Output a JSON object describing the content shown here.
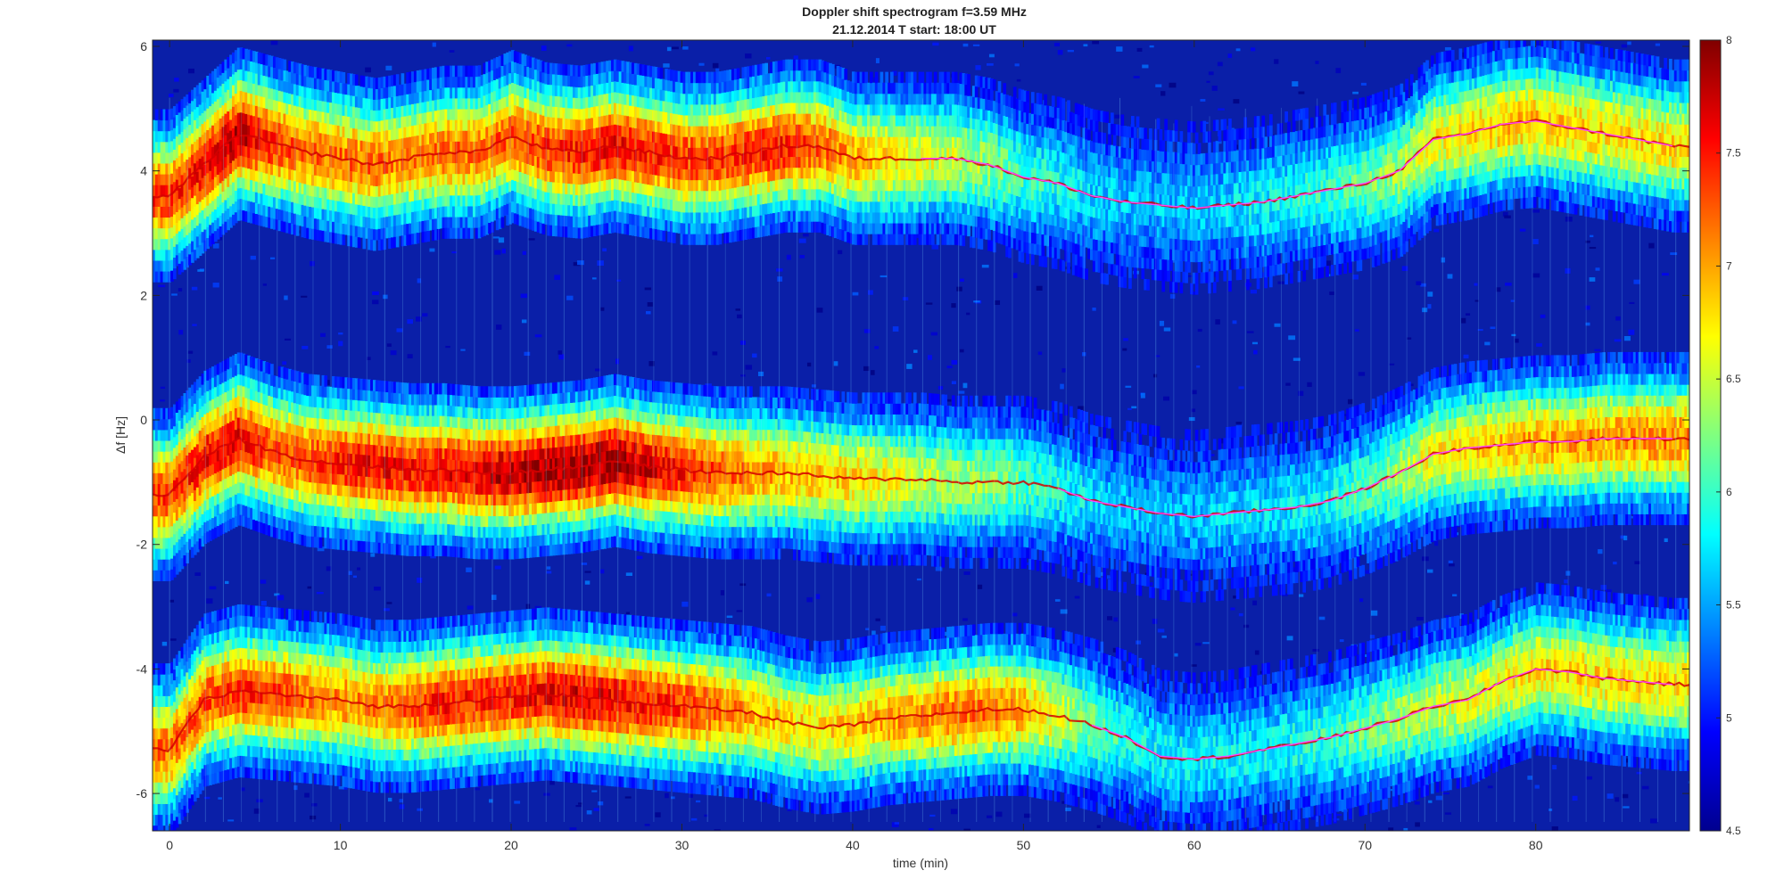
{
  "chart_data": {
    "type": "heatmap",
    "title": "Doppler shift spectrogram f=3.59 MHz",
    "subtitle": "21.12.2014   T start: 18:00 UT",
    "xlabel": "time (min)",
    "ylabel": "Δf [Hz]",
    "xlim": [
      -1,
      89
    ],
    "ylim": [
      -6.6,
      6.1
    ],
    "x_ticks": [
      0,
      10,
      20,
      30,
      40,
      50,
      60,
      70,
      80
    ],
    "x_tick_labels": [
      "0",
      "10",
      "20",
      "30",
      "40",
      "50",
      "60",
      "70",
      "80"
    ],
    "y_ticks": [
      6,
      4,
      2,
      0,
      -2,
      -4,
      -6
    ],
    "y_tick_labels": [
      "6",
      "4",
      "2",
      "0",
      "-2",
      "-4",
      "-6"
    ],
    "colorbar": {
      "colormap": "jet",
      "clim": [
        4.5,
        8
      ],
      "ticks": [
        8,
        7.5,
        7,
        6.5,
        6,
        5.5,
        5,
        4.5
      ],
      "tick_labels": [
        "8",
        "7.5",
        "7",
        "6.5",
        "6",
        "5.5",
        "5",
        "4.5"
      ]
    },
    "grid": false,
    "series": [
      {
        "kind": "band",
        "x": [
          0,
          2,
          4,
          6,
          8,
          10,
          12,
          14,
          16,
          18,
          20,
          22,
          24,
          26,
          28,
          30,
          32,
          34,
          36,
          38,
          40,
          42,
          44,
          46,
          48,
          50,
          52,
          54,
          56,
          58,
          60,
          62,
          64,
          66,
          68,
          70,
          72,
          74,
          76,
          78,
          80,
          82,
          84,
          86,
          88
        ],
        "y": [
          3.6,
          4.1,
          4.6,
          4.45,
          4.3,
          4.2,
          4.1,
          4.2,
          4.3,
          4.3,
          4.55,
          4.35,
          4.3,
          4.4,
          4.3,
          4.2,
          4.2,
          4.3,
          4.4,
          4.4,
          4.2,
          4.2,
          4.2,
          4.2,
          4.1,
          3.9,
          3.8,
          3.6,
          3.5,
          3.45,
          3.4,
          3.45,
          3.5,
          3.6,
          3.7,
          3.8,
          4.0,
          4.5,
          4.6,
          4.75,
          4.8,
          4.7,
          4.6,
          4.5,
          4.4
        ],
        "intensity": [
          7.4,
          7.6,
          7.8,
          7.4,
          7.2,
          7.2,
          7.2,
          7.1,
          7.2,
          7.2,
          7.3,
          7.4,
          7.5,
          7.6,
          7.5,
          7.4,
          7.4,
          7.5,
          7.5,
          7.3,
          7.0,
          6.8,
          6.6,
          6.5,
          6.3,
          6.0,
          5.9,
          5.7,
          5.6,
          5.6,
          5.6,
          5.7,
          5.8,
          5.9,
          6.0,
          6.2,
          6.4,
          6.7,
          6.8,
          6.9,
          6.9,
          6.9,
          6.8,
          6.8,
          6.8
        ],
        "trace": [
          0,
          0,
          0,
          0,
          0,
          0,
          0,
          0,
          0,
          0,
          0,
          0,
          0,
          0,
          0,
          0,
          0,
          0,
          0,
          0,
          0,
          0,
          1,
          1,
          1,
          1,
          1,
          1,
          1,
          1,
          1,
          1,
          1,
          1,
          1,
          1,
          1,
          1,
          1,
          1,
          1,
          1,
          1,
          1,
          1
        ]
      },
      {
        "kind": "band",
        "x": [
          0,
          2,
          4,
          6,
          8,
          10,
          12,
          14,
          16,
          18,
          20,
          22,
          24,
          26,
          28,
          30,
          32,
          34,
          36,
          38,
          40,
          42,
          44,
          46,
          48,
          50,
          52,
          54,
          56,
          58,
          60,
          62,
          64,
          66,
          68,
          70,
          72,
          74,
          76,
          78,
          80,
          82,
          84,
          86,
          88
        ],
        "y": [
          -1.2,
          -0.6,
          -0.3,
          -0.5,
          -0.65,
          -0.7,
          -0.75,
          -0.8,
          -0.8,
          -0.85,
          -0.85,
          -0.8,
          -0.75,
          -0.65,
          -0.75,
          -0.8,
          -0.85,
          -0.85,
          -0.85,
          -0.9,
          -0.95,
          -0.95,
          -0.95,
          -1.0,
          -1.0,
          -1.0,
          -1.1,
          -1.3,
          -1.4,
          -1.5,
          -1.55,
          -1.5,
          -1.45,
          -1.4,
          -1.3,
          -1.1,
          -0.85,
          -0.55,
          -0.45,
          -0.4,
          -0.35,
          -0.35,
          -0.3,
          -0.3,
          -0.3
        ],
        "intensity": [
          7.4,
          7.6,
          7.6,
          7.3,
          7.3,
          7.5,
          7.6,
          7.5,
          7.6,
          7.7,
          7.8,
          7.9,
          7.9,
          7.9,
          7.7,
          7.5,
          7.3,
          7.1,
          6.9,
          6.9,
          6.8,
          6.7,
          6.5,
          6.4,
          6.3,
          6.1,
          5.9,
          5.7,
          5.6,
          5.6,
          5.6,
          5.7,
          5.7,
          5.8,
          5.9,
          6.1,
          6.4,
          6.7,
          6.8,
          6.9,
          7.0,
          7.0,
          7.0,
          7.1,
          7.1
        ],
        "trace": [
          0,
          0,
          0,
          0,
          0,
          0,
          0,
          0,
          0,
          0,
          0,
          0,
          0,
          0,
          0,
          0,
          0,
          0,
          0,
          0,
          0,
          0,
          0,
          0,
          0,
          0,
          1,
          1,
          1,
          1,
          1,
          1,
          1,
          1,
          1,
          1,
          1,
          1,
          1,
          1,
          1,
          1,
          1,
          1,
          1
        ]
      },
      {
        "kind": "band",
        "x": [
          0,
          2,
          4,
          6,
          8,
          10,
          12,
          14,
          16,
          18,
          20,
          22,
          24,
          26,
          28,
          30,
          32,
          34,
          36,
          38,
          40,
          42,
          44,
          46,
          48,
          50,
          52,
          54,
          56,
          58,
          60,
          62,
          64,
          66,
          68,
          70,
          72,
          74,
          76,
          78,
          80,
          82,
          84,
          86,
          88
        ],
        "y": [
          -5.3,
          -4.5,
          -4.35,
          -4.4,
          -4.45,
          -4.5,
          -4.6,
          -4.6,
          -4.55,
          -4.5,
          -4.45,
          -4.4,
          -4.45,
          -4.5,
          -4.55,
          -4.6,
          -4.65,
          -4.7,
          -4.85,
          -4.95,
          -4.9,
          -4.8,
          -4.75,
          -4.7,
          -4.65,
          -4.65,
          -4.75,
          -4.9,
          -5.1,
          -5.4,
          -5.45,
          -5.4,
          -5.3,
          -5.2,
          -5.1,
          -4.95,
          -4.8,
          -4.6,
          -4.5,
          -4.2,
          -4.0,
          -4.05,
          -4.15,
          -4.2,
          -4.25
        ],
        "intensity": [
          7.2,
          7.3,
          7.4,
          7.4,
          7.2,
          7.1,
          7.1,
          7.3,
          7.5,
          7.5,
          7.5,
          7.6,
          7.7,
          7.6,
          7.5,
          7.4,
          7.2,
          7.0,
          6.8,
          6.8,
          6.9,
          7.0,
          7.1,
          7.2,
          7.2,
          7.0,
          6.6,
          6.2,
          5.9,
          5.8,
          5.8,
          5.8,
          5.8,
          5.9,
          6.0,
          6.2,
          6.4,
          6.5,
          6.6,
          6.7,
          6.8,
          6.8,
          6.8,
          6.8,
          6.8
        ],
        "trace": [
          0,
          0,
          0,
          0,
          0,
          0,
          0,
          0,
          0,
          0,
          0,
          0,
          0,
          0,
          0,
          0,
          0,
          0,
          0,
          0,
          0,
          0,
          0,
          0,
          0,
          0,
          0,
          1,
          1,
          1,
          1,
          1,
          1,
          1,
          1,
          1,
          1,
          1,
          1,
          1,
          1,
          1,
          1,
          1,
          1
        ]
      }
    ],
    "background_intensity": 4.7
  }
}
